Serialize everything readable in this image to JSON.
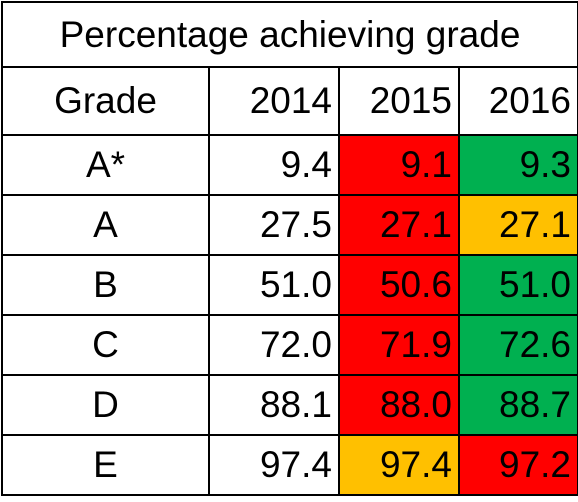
{
  "table": {
    "title": "Percentage achieving grade",
    "headers": [
      "Grade",
      "2014",
      "2015",
      "2016"
    ],
    "rows": [
      {
        "grade": "A*",
        "values": [
          "9.4",
          "9.1",
          "9.3"
        ],
        "fills": [
          "none",
          "red",
          "green"
        ]
      },
      {
        "grade": "A",
        "values": [
          "27.5",
          "27.1",
          "27.1"
        ],
        "fills": [
          "none",
          "red",
          "amber"
        ]
      },
      {
        "grade": "B",
        "values": [
          "51.0",
          "50.6",
          "51.0"
        ],
        "fills": [
          "none",
          "red",
          "green"
        ]
      },
      {
        "grade": "C",
        "values": [
          "72.0",
          "71.9",
          "72.6"
        ],
        "fills": [
          "none",
          "red",
          "green"
        ]
      },
      {
        "grade": "D",
        "values": [
          "88.1",
          "88.0",
          "88.7"
        ],
        "fills": [
          "none",
          "red",
          "green"
        ]
      },
      {
        "grade": "E",
        "values": [
          "97.4",
          "97.4",
          "97.2"
        ],
        "fills": [
          "none",
          "amber",
          "red"
        ]
      }
    ]
  },
  "colors": {
    "none": "#ffffff",
    "red": "#ff0000",
    "green": "#00b050",
    "amber": "#ffc000"
  }
}
